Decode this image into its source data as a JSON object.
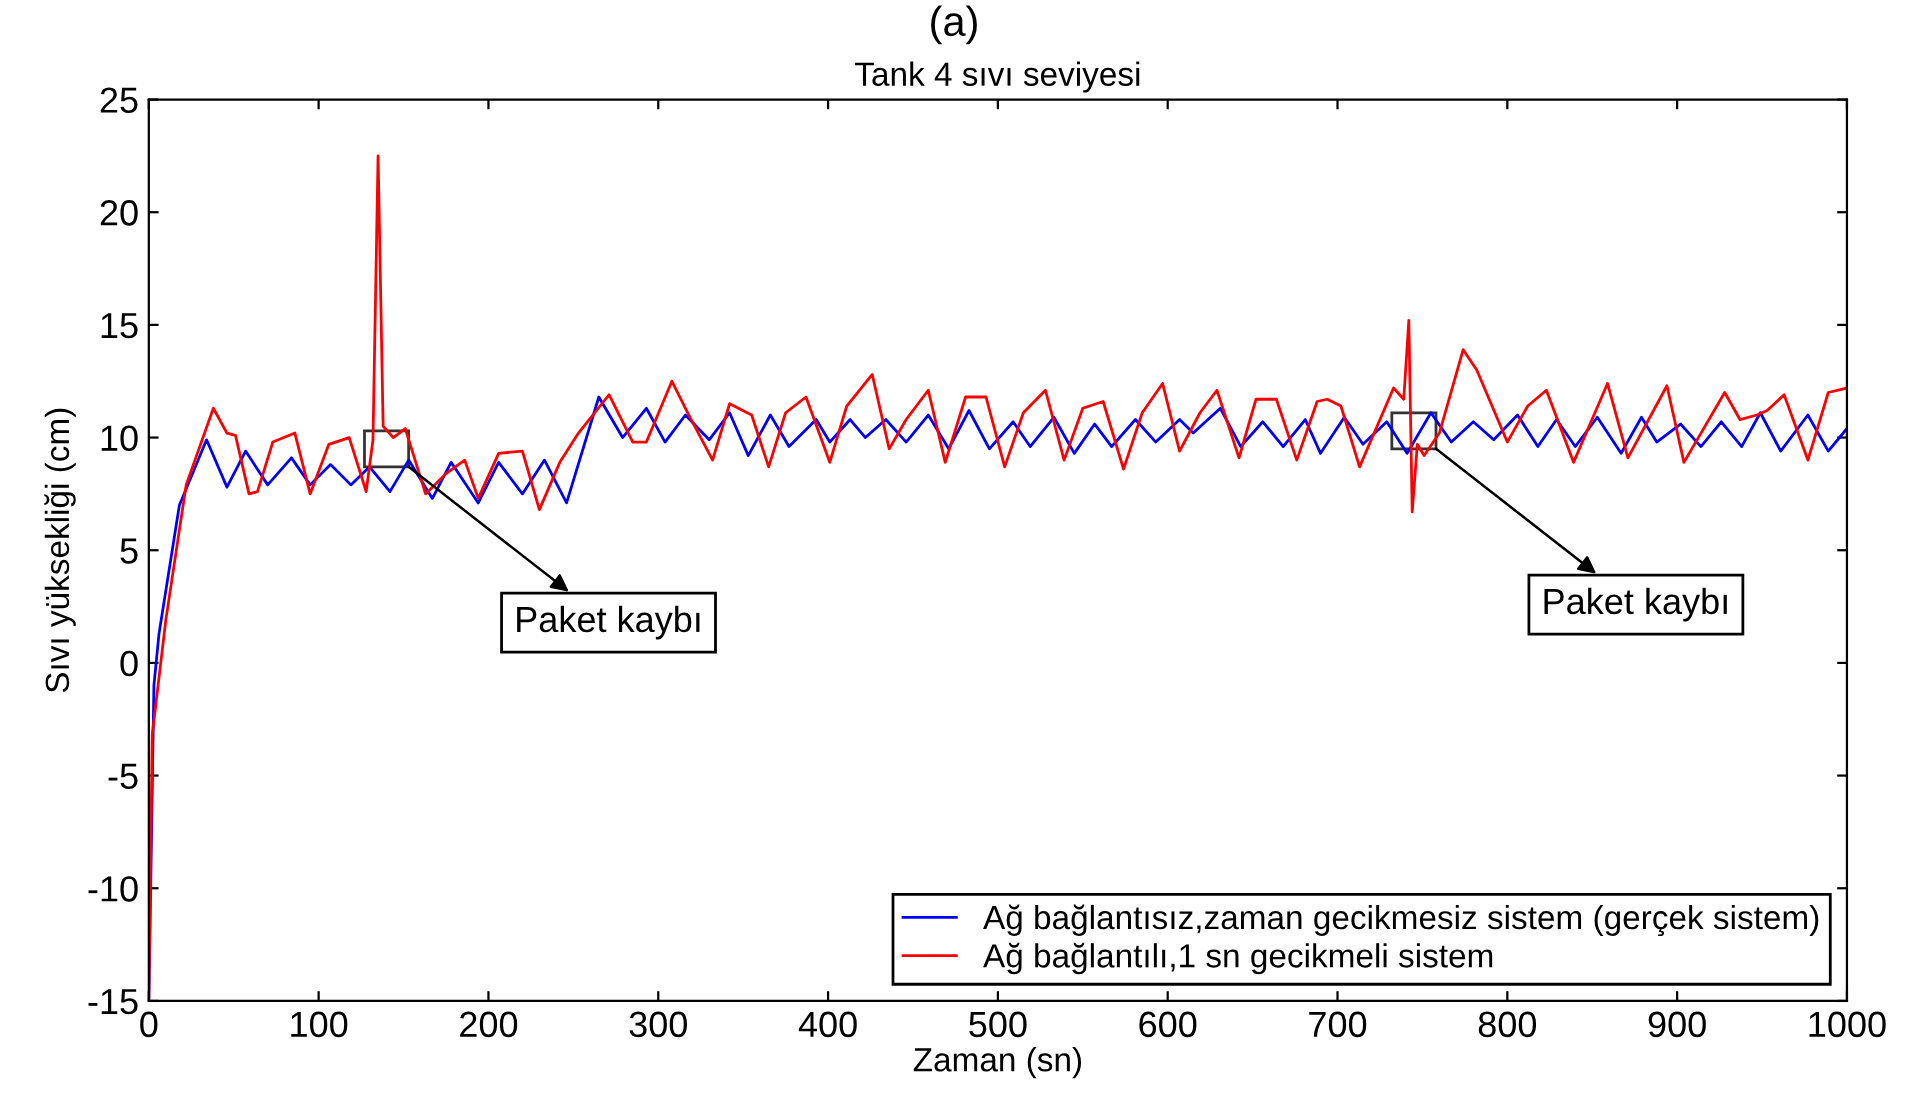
{
  "chart_data": {
    "type": "line",
    "title": "Tank 4 sıvı seviyesi",
    "xlabel": "Zaman (sn)",
    "ylabel": "Sıvı yüksekliği (cm)",
    "xlim": [
      0,
      1000
    ],
    "xticks": [
      0,
      100,
      200,
      300,
      400,
      500,
      600,
      700,
      800,
      900,
      1000
    ],
    "ylim": [
      -15,
      25
    ],
    "yticks": [
      -15,
      -10,
      -5,
      0,
      5,
      10,
      15,
      20,
      25
    ],
    "grid": false,
    "legend": "bottom right",
    "marker": "none",
    "line_style": "solid",
    "annotations": [
      "(a)",
      {
        "text": "Paket kaybı",
        "x": 153,
        "y": 8.7
      },
      {
        "text": "Paket kaybı",
        "x": 758,
        "y": 9.5
      }
    ],
    "series": [
      {
        "name": "Ağ bağlantısız,zaman gecikmesiz sistem (gerçek sistem)",
        "color": "#0000ff",
        "x": [
          0,
          3,
          6,
          18,
          34,
          46,
          57,
          70,
          84,
          95,
          107,
          119,
          130,
          142,
          153,
          167,
          178,
          194,
          206,
          220,
          233,
          246,
          265,
          279,
          293,
          304,
          316,
          330,
          342,
          353,
          366,
          377,
          393,
          401,
          413,
          422,
          434,
          446,
          459,
          471,
          483,
          495,
          509,
          519,
          533,
          545,
          557,
          567,
          581,
          593,
          607,
          615,
          631,
          643,
          656,
          668,
          681,
          690,
          704,
          715,
          729,
          741,
          755,
          767,
          780,
          792,
          806,
          818,
          829,
          840,
          853,
          867,
          879,
          888,
          902,
          914,
          926,
          938,
          949,
          961,
          977,
          989,
          1000
        ],
        "values": [
          -15,
          -1.0,
          1.3,
          7.0,
          9.9,
          7.8,
          9.4,
          7.9,
          9.1,
          7.9,
          8.8,
          7.9,
          8.7,
          7.6,
          9.0,
          7.3,
          8.9,
          7.1,
          8.9,
          7.5,
          9.0,
          7.1,
          11.8,
          10.0,
          11.3,
          9.8,
          11.0,
          9.9,
          11.1,
          9.2,
          11.0,
          9.6,
          10.8,
          9.8,
          10.8,
          10.0,
          10.8,
          9.8,
          11.0,
          9.5,
          11.2,
          9.5,
          10.7,
          9.6,
          10.9,
          9.3,
          10.6,
          9.6,
          10.8,
          9.8,
          10.8,
          10.2,
          11.3,
          9.6,
          10.7,
          9.6,
          10.8,
          9.3,
          10.9,
          9.7,
          10.7,
          9.3,
          11.1,
          9.8,
          10.7,
          9.9,
          11.0,
          9.6,
          10.8,
          9.6,
          10.9,
          9.3,
          10.9,
          9.8,
          10.6,
          9.6,
          10.7,
          9.6,
          11.1,
          9.4,
          11.0,
          9.4,
          10.4
        ]
      },
      {
        "name": "Ağ bağlantılı,1 sn gecikmeli sistem",
        "color": "#ff0000",
        "x": [
          0,
          2,
          10,
          22,
          38,
          46,
          51,
          59,
          64,
          73,
          86,
          95,
          106,
          118,
          128,
          132,
          135,
          138,
          144,
          151,
          163,
          175,
          186,
          194,
          206,
          220,
          230,
          242,
          253,
          271,
          285,
          293,
          308,
          318,
          332,
          342,
          355,
          365,
          375,
          387,
          401,
          411,
          426,
          436,
          446,
          459,
          469,
          481,
          493,
          504,
          515,
          528,
          539,
          550,
          562,
          574,
          585,
          597,
          607,
          619,
          629,
          642,
          652,
          664,
          676,
          688,
          694,
          702,
          713,
          733,
          739,
          742,
          744,
          747,
          751,
          760,
          774,
          782,
          800,
          812,
          823,
          839,
          859,
          871,
          894,
          904,
          928,
          937,
          947,
          953,
          963,
          977,
          989,
          1000
        ],
        "values": [
          -15,
          -3.2,
          1.9,
          7.9,
          11.3,
          10.2,
          10.1,
          7.5,
          7.6,
          9.8,
          10.2,
          7.5,
          9.7,
          10.0,
          7.6,
          9.9,
          22.5,
          10.5,
          10.0,
          10.4,
          7.5,
          8.4,
          9.0,
          7.3,
          9.3,
          9.4,
          6.8,
          8.9,
          10.2,
          11.9,
          9.8,
          9.8,
          12.5,
          11.0,
          9.0,
          11.5,
          11.0,
          8.7,
          11.1,
          11.8,
          8.9,
          11.4,
          12.8,
          9.5,
          10.8,
          12.1,
          8.9,
          11.8,
          11.8,
          8.7,
          11.1,
          12.1,
          9.0,
          11.3,
          11.6,
          8.6,
          11.1,
          12.4,
          9.4,
          11.1,
          12.1,
          9.1,
          11.7,
          11.7,
          9.0,
          11.6,
          11.7,
          11.4,
          8.7,
          12.2,
          11.7,
          15.2,
          6.7,
          9.7,
          9.2,
          10.2,
          13.9,
          13.0,
          9.8,
          11.4,
          12.1,
          8.9,
          12.4,
          9.1,
          12.3,
          8.9,
          12.0,
          10.8,
          11.0,
          11.2,
          11.9,
          9.0,
          12.0,
          12.2
        ]
      }
    ]
  }
}
